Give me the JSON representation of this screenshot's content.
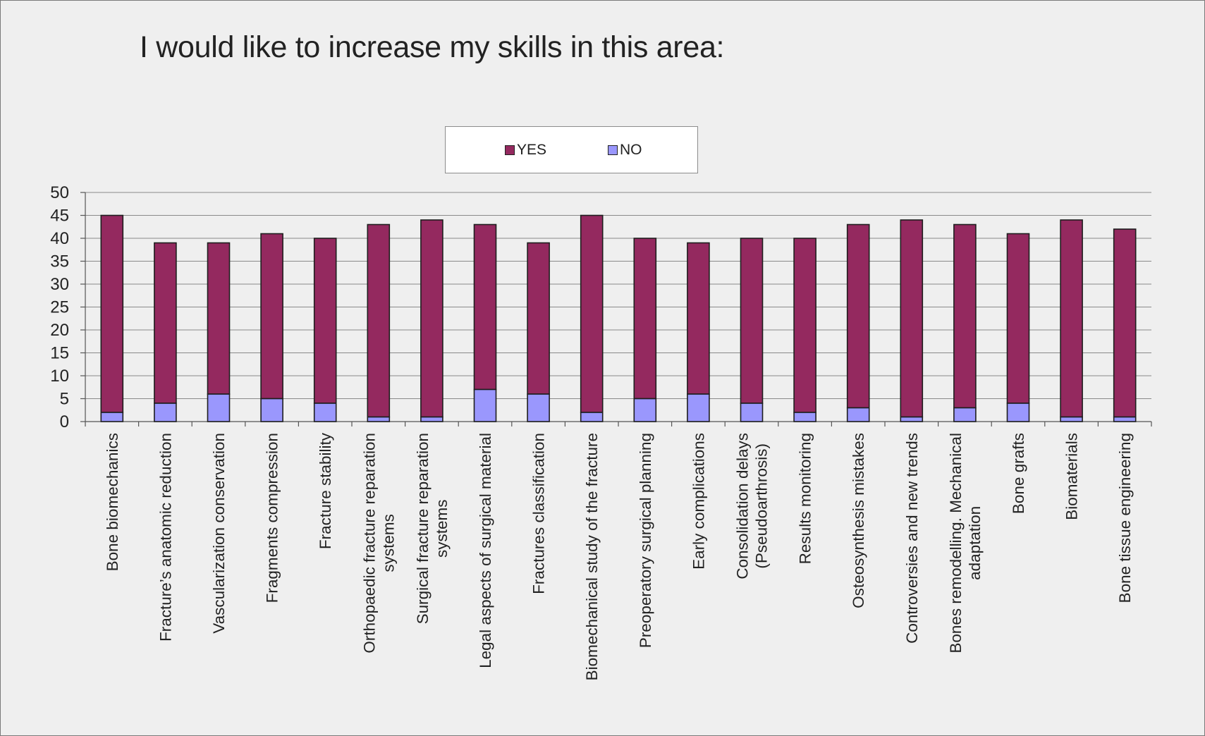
{
  "title": "I would like to increase my skills in this area:",
  "legend": {
    "position": "top-center"
  },
  "colors": {
    "yes": "#94295f",
    "no": "#9a97fd",
    "outline": "#1e1e1e",
    "grid": "#8a8a8a"
  },
  "chart_data": {
    "type": "bar",
    "stacked": true,
    "title": "I would like to increase my skills in this area:",
    "xlabel": "",
    "ylabel": "",
    "ylim": [
      0,
      50
    ],
    "yticks": [
      0,
      5,
      10,
      15,
      20,
      25,
      30,
      35,
      40,
      45,
      50
    ],
    "grid": true,
    "categories": [
      [
        "Bone biomechanics"
      ],
      [
        "Fracture’s anatomic reduction"
      ],
      [
        "Vascularization conservation"
      ],
      [
        "Fragments compression"
      ],
      [
        "Fracture stability"
      ],
      [
        "Orthopaedic fracture reparation",
        "systems"
      ],
      [
        "Surgical fracture reparation",
        "systems"
      ],
      [
        "Legal aspects of surgical material"
      ],
      [
        "Fractures classification"
      ],
      [
        "Biomechanical study of the fracture"
      ],
      [
        "Preoperatory surgical planning"
      ],
      [
        "Early complications"
      ],
      [
        "Consolidation delays",
        "(Pseudoarthrosis)"
      ],
      [
        "Results monitoring"
      ],
      [
        "Osteosynthesis mistakes"
      ],
      [
        "Controversies and new trends"
      ],
      [
        "Bones remodelling. Mechanical",
        "adaptation"
      ],
      [
        "Bone grafts"
      ],
      [
        "Biomaterials"
      ],
      [
        "Bone tissue engineering"
      ]
    ],
    "series": [
      {
        "name": "NO",
        "values": [
          2,
          4,
          6,
          5,
          4,
          1,
          1,
          7,
          6,
          2,
          5,
          6,
          4,
          2,
          3,
          1,
          3,
          4,
          1,
          1
        ]
      },
      {
        "name": "YES",
        "values": [
          43,
          35,
          33,
          36,
          36,
          42,
          43,
          36,
          33,
          43,
          35,
          33,
          36,
          38,
          40,
          43,
          40,
          37,
          43,
          41
        ]
      }
    ]
  }
}
